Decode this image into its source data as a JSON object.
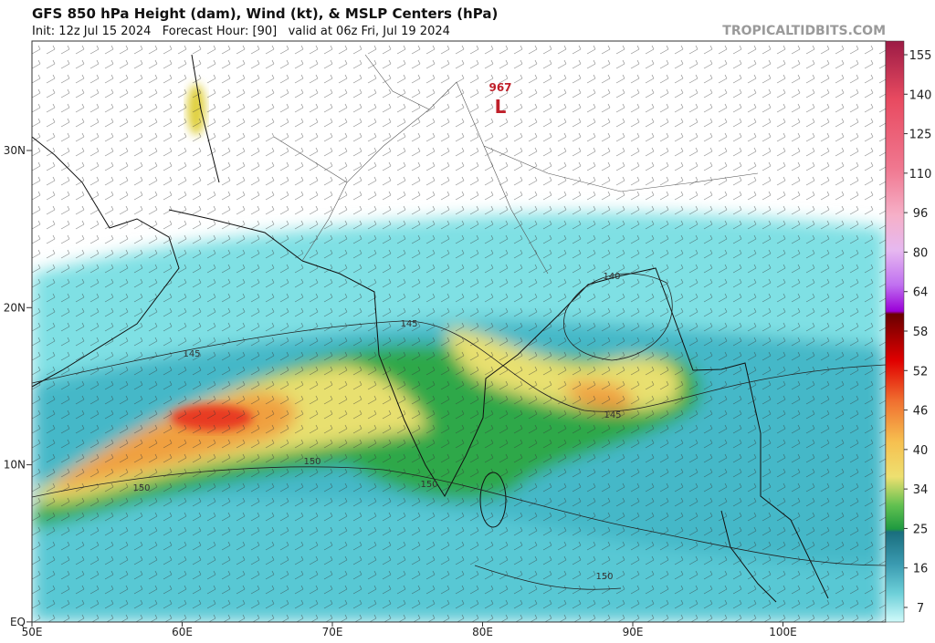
{
  "header": {
    "title": "GFS 850 hPa Height (dam), Wind (kt), & MSLP Centers (hPa)",
    "subtitle": "Init: 12z Jul 15 2024   Forecast Hour: [90]   valid at 06z Fri, Jul 19 2024",
    "credit": "TROPICALTIDBITS.COM"
  },
  "map": {
    "lat_labels": [
      "30N",
      "20N",
      "10N",
      "EQ"
    ],
    "lon_labels": [
      "50E",
      "60E",
      "70E",
      "80E",
      "90E",
      "100E"
    ],
    "low": {
      "pressure": "967",
      "symbol": "L"
    },
    "contour_labels": [
      "140",
      "145",
      "145",
      "145",
      "150",
      "150",
      "150",
      "150"
    ]
  },
  "colorbar": {
    "labels": [
      "155",
      "140",
      "125",
      "110",
      "96",
      "80",
      "64",
      "58",
      "52",
      "46",
      "40",
      "34",
      "25",
      "16",
      "7"
    ]
  }
}
